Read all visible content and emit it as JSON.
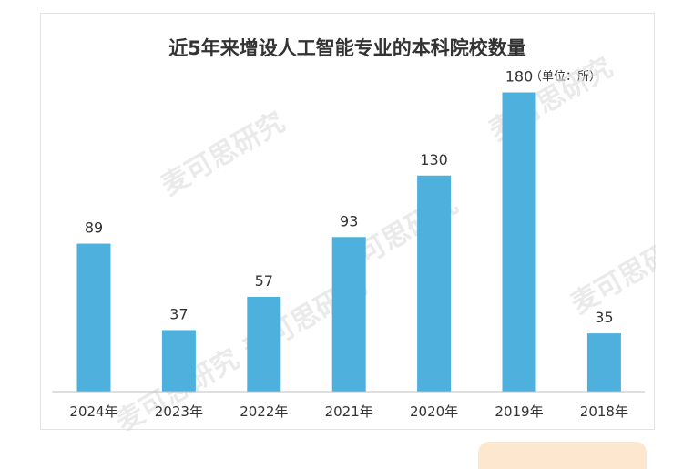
{
  "header": {
    "title": "近5年来增设人工智能专业的本科院校数量",
    "unit": "（单位：所）"
  },
  "watermark": "麦可思研究",
  "colors": {
    "bar": "#4db0dd",
    "axis": "#bfbfbf"
  },
  "chart_data": {
    "type": "bar",
    "title": "近5年来增设人工智能专业的本科院校数量",
    "unit": "（单位：所）",
    "xlabel": "",
    "ylabel": "",
    "categories": [
      "2024年",
      "2023年",
      "2022年",
      "2021年",
      "2020年",
      "2019年",
      "2018年"
    ],
    "values": [
      89,
      37,
      57,
      93,
      130,
      180,
      35
    ],
    "ylim": [
      0,
      200
    ],
    "grid": false,
    "data_labels": true
  }
}
